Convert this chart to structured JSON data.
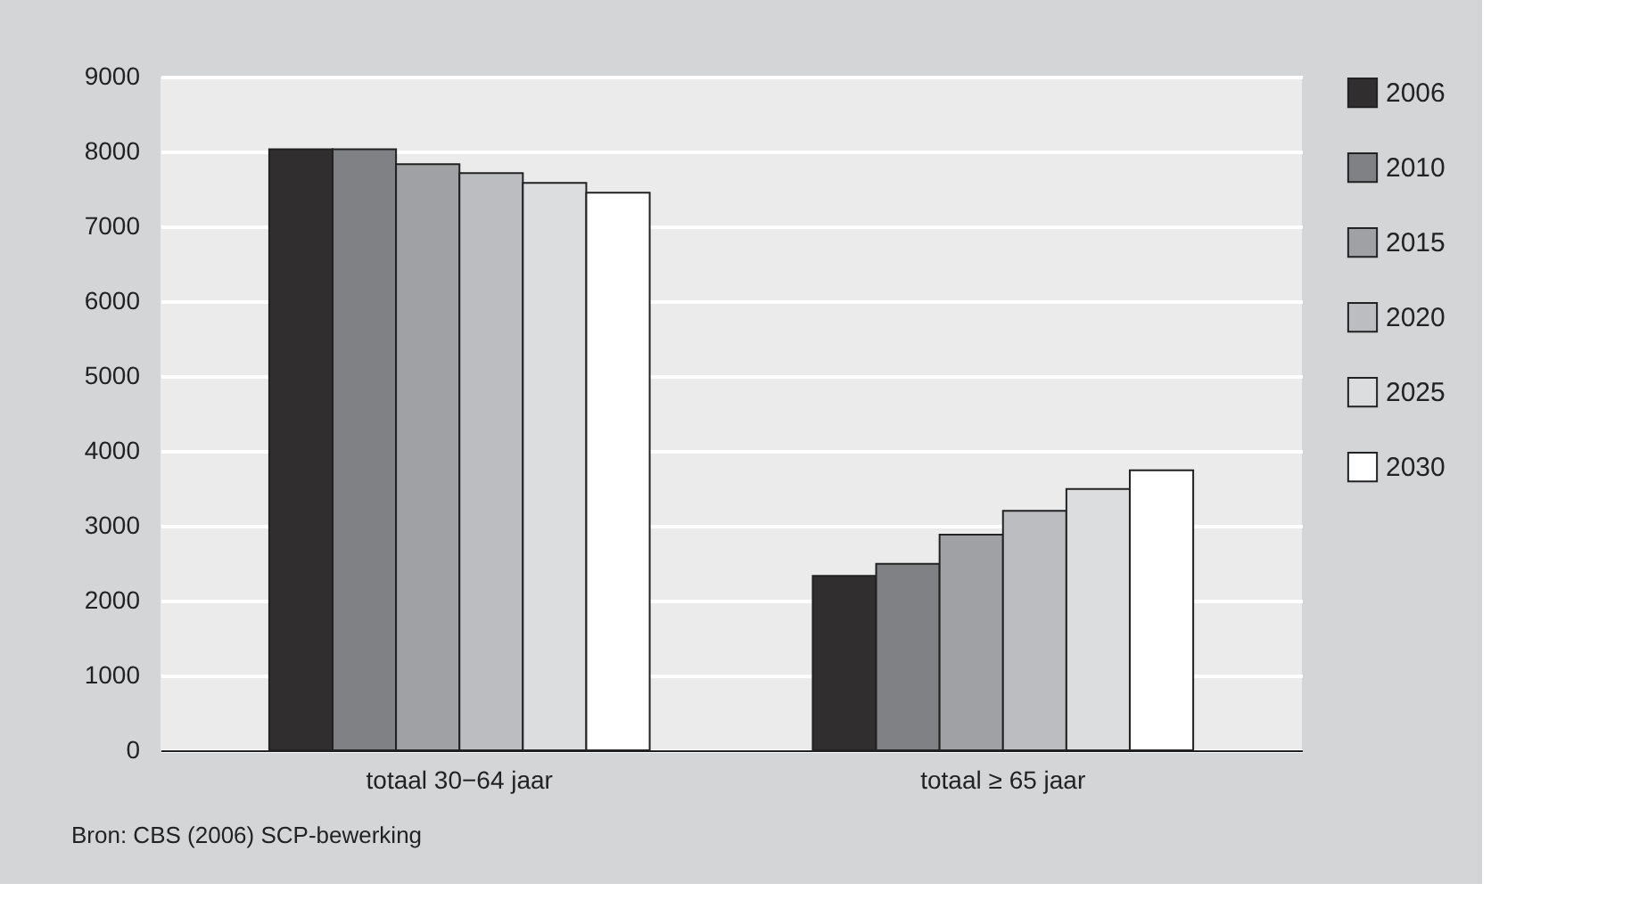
{
  "chart_data": {
    "type": "bar",
    "categories": [
      "totaal 30−64 jaar",
      "totaal ≥ 65 jaar"
    ],
    "series": [
      {
        "name": "2006",
        "color": "#302e2f",
        "values": [
          8030,
          2330
        ]
      },
      {
        "name": "2010",
        "color": "#808184",
        "values": [
          8030,
          2490
        ]
      },
      {
        "name": "2015",
        "color": "#a0a1a4",
        "values": [
          7830,
          2880
        ]
      },
      {
        "name": "2020",
        "color": "#bcbdc0",
        "values": [
          7710,
          3200
        ]
      },
      {
        "name": "2025",
        "color": "#dcdddf",
        "values": [
          7580,
          3490
        ]
      },
      {
        "name": "2030",
        "color": "#ffffff",
        "values": [
          7450,
          3740
        ]
      }
    ],
    "ylim": [
      0,
      9000
    ],
    "yticks": [
      0,
      1000,
      2000,
      3000,
      4000,
      5000,
      6000,
      7000,
      8000,
      9000
    ],
    "grid": "y",
    "legend": "right",
    "annotations": [
      "Bron: CBS (2006) SCP-bewerking"
    ]
  }
}
